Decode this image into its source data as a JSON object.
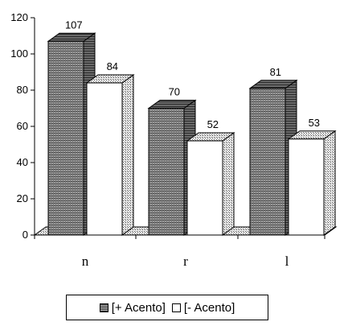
{
  "chart_data": {
    "type": "bar",
    "categories": [
      "n",
      "r",
      "l"
    ],
    "series": [
      {
        "name": "[+ Acento]",
        "values": [
          107,
          70,
          81
        ]
      },
      {
        "name": "[- Acento]",
        "values": [
          84,
          52,
          53
        ]
      }
    ],
    "title": "",
    "xlabel": "",
    "ylabel": "",
    "ylim": [
      0,
      120
    ],
    "yticks": [
      0,
      20,
      40,
      60,
      80,
      100,
      120
    ],
    "legend": "bottom",
    "grid": false,
    "style": "3d",
    "colors": {
      "plus": "#8a8a8a",
      "minus": "#ffffff",
      "floor": "#c8c8c8"
    }
  }
}
